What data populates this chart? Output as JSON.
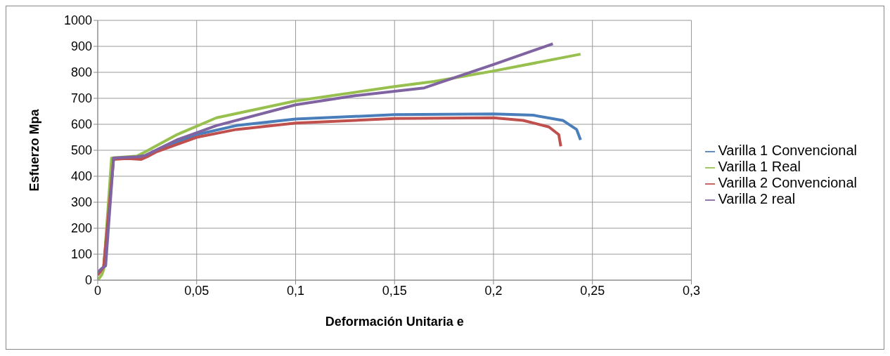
{
  "chart_data": {
    "type": "line",
    "xlabel": "Deformación Unitaria e",
    "ylabel": "Esfuerzo Mpa",
    "xlim": [
      0,
      0.3
    ],
    "xticks": [
      0,
      {
        "value": 0.05,
        "label": "0,05"
      },
      {
        "value": 0.1,
        "label": "0,1"
      },
      {
        "value": 0.15,
        "label": "0,15"
      },
      {
        "value": 0.2,
        "label": "0,2"
      },
      {
        "value": 0.25,
        "label": "0,25"
      },
      {
        "value": 0.3,
        "label": "0,3"
      }
    ],
    "ylim": [
      0,
      1000
    ],
    "yticks": [
      0,
      100,
      200,
      300,
      400,
      500,
      600,
      700,
      800,
      900,
      1000
    ],
    "grid": true,
    "legend": "right",
    "marker": "none",
    "series": [
      {
        "name": "Varilla 1 Convencional",
        "color": "#4a7ebb",
        "x": [
          0,
          0.003,
          0.008,
          0.02,
          0.024,
          0.03,
          0.05,
          0.07,
          0.1,
          0.15,
          0.2,
          0.22,
          0.235,
          0.242,
          0.244
        ],
        "values": [
          20,
          50,
          470,
          470,
          475,
          500,
          560,
          595,
          620,
          637,
          640,
          635,
          615,
          580,
          540
        ]
      },
      {
        "name": "Varilla 1 Real",
        "color": "#98c04f",
        "x": [
          0,
          0.002,
          0.003,
          0.007,
          0.02,
          0.023,
          0.04,
          0.06,
          0.1,
          0.15,
          0.17,
          0.2,
          0.244
        ],
        "values": [
          0,
          20,
          40,
          470,
          478,
          490,
          560,
          625,
          690,
          745,
          765,
          805,
          870
        ]
      },
      {
        "name": "Varilla 2 Convencional",
        "color": "#c0504d",
        "x": [
          0,
          0.003,
          0.008,
          0.015,
          0.022,
          0.025,
          0.03,
          0.05,
          0.07,
          0.1,
          0.15,
          0.2,
          0.215,
          0.228,
          0.233,
          0.234
        ],
        "values": [
          20,
          50,
          465,
          468,
          465,
          475,
          495,
          550,
          580,
          605,
          622,
          625,
          615,
          590,
          560,
          515
        ]
      },
      {
        "name": "Varilla 2 real",
        "color": "#8064a2",
        "x": [
          0,
          0.002,
          0.004,
          0.008,
          0.02,
          0.024,
          0.04,
          0.06,
          0.1,
          0.13,
          0.165,
          0.2,
          0.23
        ],
        "values": [
          30,
          45,
          55,
          470,
          475,
          480,
          540,
          595,
          675,
          710,
          740,
          830,
          910
        ]
      }
    ]
  }
}
